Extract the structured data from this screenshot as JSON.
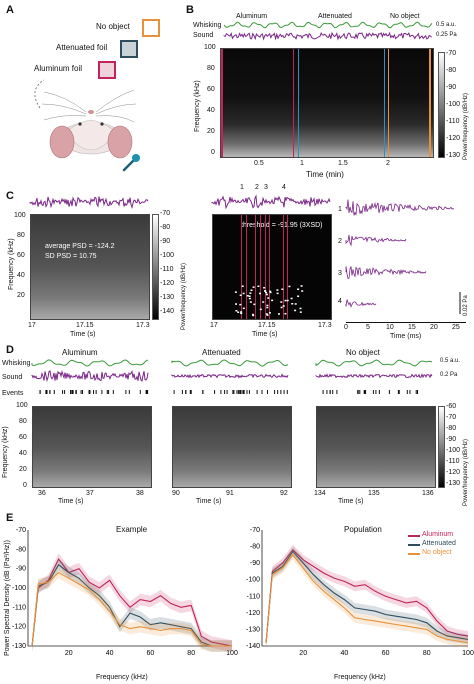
{
  "panels": {
    "A": {
      "label": "A",
      "legend": [
        "No object",
        "Attenuated foil",
        "Aluminum foil"
      ],
      "colors": {
        "no_object": "#e8913a",
        "attenuated": "#2e4d5c",
        "aluminum": "#c0245a",
        "mic": "#1f8fb0"
      }
    },
    "B": {
      "label": "B",
      "conditions": [
        "Aluminum",
        "Attenuated",
        "No object"
      ],
      "whisking_label": "Whisking",
      "sound_label": "Sound",
      "whisk_scale": "0.5 a.u.",
      "sound_scale": "0.25 Pa",
      "ylabel": "Frequency (kHz)",
      "yticks": [
        "100",
        "80",
        "60",
        "40",
        "20",
        "0"
      ],
      "xlabel": "Time (min)",
      "xticks": [
        "0.5",
        "1",
        "1.5",
        "2"
      ],
      "cbar_label": "Power/frequency (dB/Hz)",
      "cbar_ticks": [
        "-70",
        "-80",
        "-90",
        "-100",
        "-110",
        "-120",
        "-130"
      ]
    },
    "C": {
      "label": "C",
      "avg_text": "average PSD = -124.2",
      "sd_text": "SD PSD = 10.75",
      "threshold_text": "threshold = -91.95 (3XSD)",
      "ylabel": "Frequency (kHz)",
      "yticks": [
        "100",
        "80",
        "60",
        "40",
        "20"
      ],
      "xticks_left": [
        "17",
        "17.15",
        "17.3"
      ],
      "xticks_mid": [
        "17",
        "17.15",
        "17.3"
      ],
      "cbar_label": "Power/frequency (dB/Hz)",
      "cbar_ticks": [
        "-70",
        "-80",
        "-90",
        "-100",
        "-110",
        "-120",
        "-130",
        "-140"
      ],
      "event_numbers": [
        "1",
        "2",
        "3",
        "4"
      ],
      "x_axis_label": "Time (s)",
      "event_xlabel": "Time (ms)",
      "event_xticks": [
        "0",
        "5",
        "10",
        "15",
        "20",
        "25"
      ],
      "event_scale": "0.02 Pa"
    },
    "D": {
      "label": "D",
      "conditions": [
        "Aluminum",
        "Attenuated",
        "No object"
      ],
      "row_labels": [
        "Whisking",
        "Sound",
        "Events"
      ],
      "whisk_scale": "0.5 a.u.",
      "sound_scale": "0.2 Pa",
      "ylabel": "Frequency (kHz)",
      "yticks": [
        "100",
        "80",
        "60",
        "40",
        "20",
        "0"
      ],
      "xticks": [
        [
          "36",
          "37",
          "38"
        ],
        [
          "90",
          "91",
          "92"
        ],
        [
          "134",
          "135",
          "136"
        ]
      ],
      "xlabel": "Time (s)",
      "cbar_label": "Power/frequency (dB/Hz)",
      "cbar_ticks": [
        "-60",
        "-70",
        "-80",
        "-90",
        "-100",
        "-110",
        "-120",
        "-130"
      ]
    },
    "E": {
      "label": "E",
      "titles": [
        "Example",
        "Population"
      ],
      "ylabel": "Power Spectral Density (dB (Pa²/Hz))",
      "xlabel": "Frequency (kHz)",
      "legend": [
        "Aluminum",
        "Attenuated",
        "No object"
      ]
    }
  },
  "chart_data": [
    {
      "type": "line",
      "title": "Example",
      "xlabel": "Frequency (kHz)",
      "ylabel": "Power Spectral Density (dB (Pa²/Hz))",
      "xlim": [
        0,
        100
      ],
      "ylim": [
        -130,
        -70
      ],
      "xticks": [
        20,
        40,
        60,
        80,
        100
      ],
      "yticks": [
        -70,
        -80,
        -90,
        -100,
        -110,
        -120,
        -130
      ],
      "x": [
        2,
        5,
        10,
        15,
        20,
        25,
        30,
        35,
        40,
        45,
        50,
        55,
        60,
        65,
        70,
        75,
        80,
        85,
        90,
        95,
        100
      ],
      "series": [
        {
          "name": "Aluminum",
          "color": "#c0245a",
          "values": [
            -130,
            -100,
            -96,
            -85,
            -92,
            -90,
            -97,
            -100,
            -96,
            -104,
            -110,
            -106,
            -107,
            -104,
            -108,
            -110,
            -109,
            -125,
            -128,
            -129,
            -130
          ]
        },
        {
          "name": "Attenuated",
          "color": "#2e4d5c",
          "values": [
            -130,
            -99,
            -97,
            -88,
            -92,
            -95,
            -100,
            -104,
            -110,
            -120,
            -113,
            -115,
            -119,
            -118,
            -119,
            -120,
            -121,
            -128,
            -130,
            -130,
            -130
          ]
        },
        {
          "name": "No object",
          "color": "#e8913a",
          "values": [
            -130,
            -98,
            -97,
            -92,
            -95,
            -98,
            -101,
            -106,
            -112,
            -119,
            -121,
            -120,
            -121,
            -122,
            -121,
            -121,
            -122,
            -129,
            -130,
            -130,
            -130
          ]
        }
      ]
    },
    {
      "type": "line",
      "title": "Population",
      "xlabel": "Frequency (kHz)",
      "ylabel": "",
      "xlim": [
        0,
        100
      ],
      "ylim": [
        -140,
        -70
      ],
      "xticks": [
        20,
        40,
        60,
        80,
        100
      ],
      "yticks": [
        -70,
        -80,
        -90,
        -100,
        -110,
        -120,
        -130,
        -140
      ],
      "x": [
        2,
        5,
        10,
        15,
        20,
        25,
        30,
        35,
        40,
        45,
        50,
        55,
        60,
        65,
        70,
        75,
        80,
        85,
        90,
        95,
        100
      ],
      "series": [
        {
          "name": "Aluminum",
          "color": "#c0245a",
          "values": [
            -138,
            -95,
            -90,
            -82,
            -88,
            -92,
            -96,
            -99,
            -101,
            -104,
            -103,
            -107,
            -110,
            -112,
            -114,
            -113,
            -117,
            -125,
            -131,
            -133,
            -134
          ]
        },
        {
          "name": "Attenuated",
          "color": "#2e4d5c",
          "values": [
            -138,
            -96,
            -92,
            -83,
            -90,
            -97,
            -103,
            -108,
            -112,
            -117,
            -118,
            -119,
            -121,
            -122,
            -123,
            -124,
            -126,
            -131,
            -134,
            -135,
            -136
          ]
        },
        {
          "name": "No object",
          "color": "#e8913a",
          "values": [
            -138,
            -97,
            -93,
            -85,
            -93,
            -101,
            -107,
            -112,
            -117,
            -123,
            -124,
            -125,
            -126,
            -127,
            -128,
            -129,
            -130,
            -134,
            -136,
            -137,
            -138
          ]
        }
      ]
    }
  ]
}
